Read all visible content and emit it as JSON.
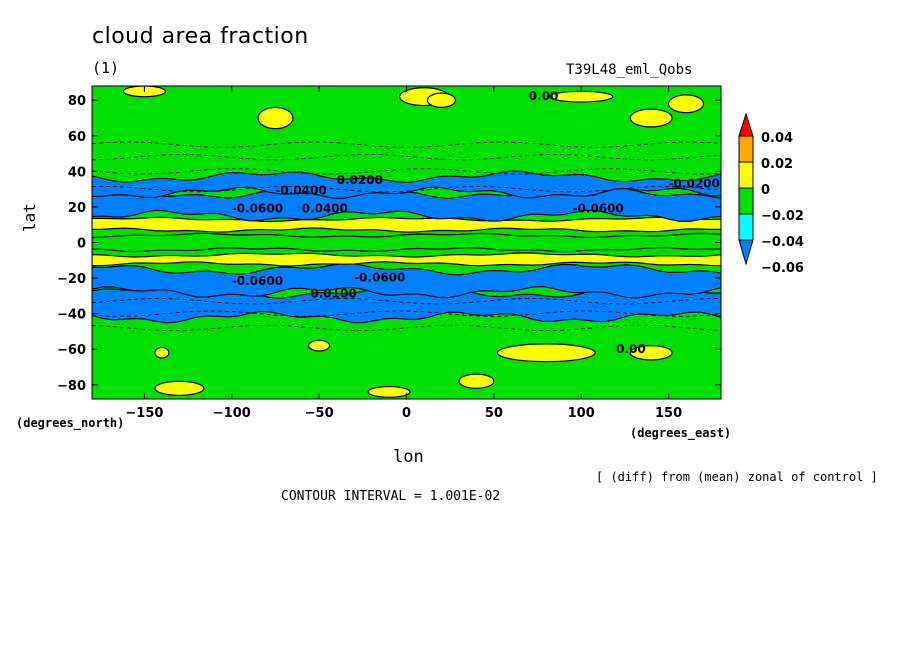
{
  "header": {
    "title": "cloud area fraction",
    "panel": "(1)",
    "run": "T39L48_eml_Qobs"
  },
  "footer": {
    "lat_units": "(degrees_north)",
    "lon_units": "(degrees_east)",
    "note": "[ (diff) from (mean) zonal of control ]",
    "contour_interval": "CONTOUR INTERVAL = 1.001E-02"
  },
  "chart_data": {
    "type": "heatmap",
    "title": "cloud area fraction",
    "xlabel": "lon",
    "ylabel": "lat",
    "xlim": [
      -180,
      180
    ],
    "ylim": [
      -88,
      88
    ],
    "xticks": [
      -150,
      -100,
      -50,
      0,
      50,
      100,
      150
    ],
    "yticks": [
      -80,
      -60,
      -40,
      -20,
      0,
      20,
      40,
      60,
      80
    ],
    "colorbar": {
      "levels": [
        0.04,
        0.02,
        0,
        -0.02,
        -0.04,
        -0.06
      ],
      "level_labels": [
        "0.04",
        "0.02",
        "0",
        "−0.02",
        "−0.04",
        "−0.06"
      ],
      "colors": [
        "#ff0000",
        "#ffa500",
        "#ffff00",
        "#00e000",
        "#00ffff",
        "#0080ff"
      ],
      "extend": "both"
    },
    "bands": [
      {
        "lat": [
          -88,
          -65
        ],
        "value": 0.0,
        "note": "green with yellow patches"
      },
      {
        "lat": [
          -42,
          -28
        ],
        "value": -0.04
      },
      {
        "lat": [
          -28,
          -15
        ],
        "value": -0.06
      },
      {
        "lat": [
          -12,
          -7
        ],
        "value": 0.02
      },
      {
        "lat": [
          -4,
          4
        ],
        "value": 0.0
      },
      {
        "lat": [
          7,
          13
        ],
        "value": 0.02
      },
      {
        "lat": [
          15,
          28
        ],
        "value": -0.06
      },
      {
        "lat": [
          28,
          37
        ],
        "value": -0.04
      },
      {
        "lat": [
          65,
          88
        ],
        "value": 0.0,
        "note": "green with yellow patches"
      }
    ],
    "contour_labels": [
      "0.00",
      "0.0200",
      "-0.0400",
      "-0.0600",
      "-0.0600",
      "0.0400",
      "-0.0600",
      "-0.0600",
      "0.00",
      "-0.0200",
      "0.0100"
    ]
  }
}
